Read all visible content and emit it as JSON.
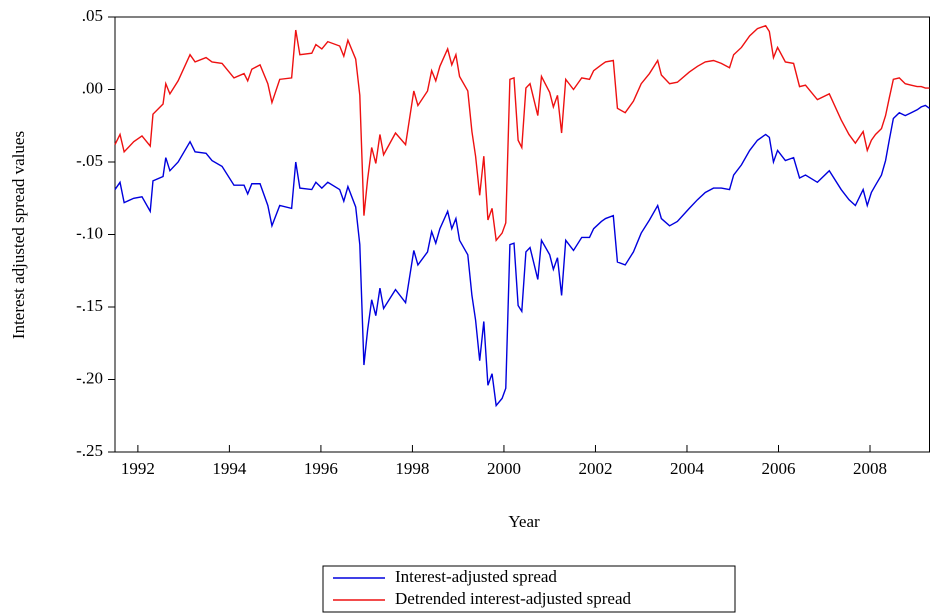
{
  "chart_data": {
    "type": "line",
    "x_label": "Year",
    "y_label": "Interest adjusted spread values",
    "x": [
      1991.5,
      1991.61,
      1991.7,
      1991.91,
      1992.09,
      1992.27,
      1992.33,
      1992.55,
      1992.61,
      1992.7,
      1992.88,
      1993.14,
      1993.25,
      1993.49,
      1993.62,
      1993.84,
      1994.1,
      1994.32,
      1994.4,
      1994.49,
      1994.67,
      1994.84,
      1994.93,
      1995.1,
      1995.36,
      1995.45,
      1995.54,
      1995.8,
      1995.89,
      1996.02,
      1996.15,
      1996.41,
      1996.5,
      1996.59,
      1996.76,
      1996.85,
      1996.94,
      1997.02,
      1997.11,
      1997.2,
      1997.29,
      1997.37,
      1997.63,
      1997.85,
      1998.03,
      1998.12,
      1998.33,
      1998.42,
      1998.51,
      1998.6,
      1998.77,
      1998.86,
      1998.95,
      1999.03,
      1999.21,
      1999.3,
      1999.38,
      1999.47,
      1999.56,
      1999.65,
      1999.74,
      1999.83,
      1999.96,
      2000.04,
      2000.13,
      2000.22,
      2000.31,
      2000.39,
      2000.48,
      2000.57,
      2000.74,
      2000.82,
      2001.0,
      2001.08,
      2001.17,
      2001.26,
      2001.35,
      2001.52,
      2001.7,
      2001.87,
      2001.96,
      2002.13,
      2002.22,
      2002.39,
      2002.48,
      2002.65,
      2002.83,
      2003.0,
      2003.18,
      2003.36,
      2003.44,
      2003.62,
      2003.79,
      2004.05,
      2004.23,
      2004.4,
      2004.58,
      2004.75,
      2004.93,
      2005.02,
      2005.19,
      2005.37,
      2005.54,
      2005.72,
      2005.8,
      2005.89,
      2005.98,
      2006.15,
      2006.33,
      2006.46,
      2006.59,
      2006.85,
      2007.11,
      2007.37,
      2007.54,
      2007.68,
      2007.85,
      2007.94,
      2008.03,
      2008.12,
      2008.25,
      2008.34,
      2008.42,
      2008.51,
      2008.64,
      2008.77,
      2008.9,
      2009.03,
      2009.12,
      2009.21,
      2009.3
    ],
    "series": [
      {
        "name": "Interest-adjusted spread",
        "color": "#0000dd",
        "values": [
          -0.069,
          -0.064,
          -0.078,
          -0.075,
          -0.074,
          -0.084,
          -0.063,
          -0.06,
          -0.047,
          -0.056,
          -0.05,
          -0.036,
          -0.043,
          -0.044,
          -0.049,
          -0.053,
          -0.066,
          -0.066,
          -0.072,
          -0.065,
          -0.065,
          -0.08,
          -0.094,
          -0.08,
          -0.082,
          -0.05,
          -0.068,
          -0.069,
          -0.064,
          -0.068,
          -0.064,
          -0.069,
          -0.077,
          -0.067,
          -0.081,
          -0.107,
          -0.19,
          -0.166,
          -0.145,
          -0.156,
          -0.137,
          -0.151,
          -0.138,
          -0.147,
          -0.111,
          -0.121,
          -0.112,
          -0.098,
          -0.106,
          -0.096,
          -0.084,
          -0.096,
          -0.089,
          -0.104,
          -0.114,
          -0.142,
          -0.159,
          -0.187,
          -0.16,
          -0.204,
          -0.196,
          -0.218,
          -0.213,
          -0.206,
          -0.107,
          -0.106,
          -0.149,
          -0.153,
          -0.112,
          -0.109,
          -0.131,
          -0.104,
          -0.114,
          -0.124,
          -0.116,
          -0.142,
          -0.104,
          -0.111,
          -0.102,
          -0.102,
          -0.096,
          -0.091,
          -0.089,
          -0.087,
          -0.119,
          -0.121,
          -0.112,
          -0.099,
          -0.09,
          -0.08,
          -0.089,
          -0.094,
          -0.091,
          -0.082,
          -0.076,
          -0.071,
          -0.068,
          -0.068,
          -0.069,
          -0.059,
          -0.052,
          -0.042,
          -0.035,
          -0.031,
          -0.033,
          -0.05,
          -0.042,
          -0.049,
          -0.047,
          -0.061,
          -0.059,
          -0.064,
          -0.056,
          -0.069,
          -0.076,
          -0.08,
          -0.069,
          -0.08,
          -0.071,
          -0.066,
          -0.059,
          -0.049,
          -0.035,
          -0.02,
          -0.016,
          -0.018,
          -0.016,
          -0.014,
          -0.012,
          -0.011,
          -0.013
        ]
      },
      {
        "name": "Detrended interest-adjusted spread",
        "color": "#ee1111",
        "values": [
          -0.038,
          -0.031,
          -0.043,
          -0.036,
          -0.032,
          -0.039,
          -0.017,
          -0.01,
          0.004,
          -0.003,
          0.006,
          0.024,
          0.019,
          0.022,
          0.019,
          0.018,
          0.008,
          0.011,
          0.006,
          0.014,
          0.017,
          0.004,
          -0.009,
          0.007,
          0.008,
          0.041,
          0.024,
          0.025,
          0.031,
          0.028,
          0.033,
          0.03,
          0.023,
          0.034,
          0.021,
          -0.004,
          -0.087,
          -0.062,
          -0.04,
          -0.051,
          -0.031,
          -0.045,
          -0.03,
          -0.038,
          -0.001,
          -0.011,
          -0.001,
          0.013,
          0.006,
          0.016,
          0.028,
          0.017,
          0.024,
          0.009,
          -0.001,
          -0.029,
          -0.046,
          -0.073,
          -0.046,
          -0.09,
          -0.082,
          -0.104,
          -0.099,
          -0.092,
          0.007,
          0.008,
          -0.035,
          -0.04,
          0.001,
          0.004,
          -0.018,
          0.009,
          -0.002,
          -0.012,
          -0.004,
          -0.03,
          0.007,
          0.0,
          0.008,
          0.007,
          0.013,
          0.017,
          0.019,
          0.02,
          -0.013,
          -0.016,
          -0.008,
          0.004,
          0.011,
          0.02,
          0.01,
          0.004,
          0.005,
          0.012,
          0.016,
          0.019,
          0.02,
          0.018,
          0.015,
          0.024,
          0.029,
          0.037,
          0.042,
          0.044,
          0.04,
          0.022,
          0.029,
          0.019,
          0.018,
          0.002,
          0.003,
          -0.007,
          -0.003,
          -0.021,
          -0.031,
          -0.037,
          -0.029,
          -0.042,
          -0.035,
          -0.031,
          -0.027,
          -0.018,
          -0.006,
          0.007,
          0.008,
          0.004,
          0.003,
          0.002,
          0.002,
          0.001,
          0.001
        ]
      }
    ],
    "xlim": [
      1991.5,
      2009.3
    ],
    "xticks": [
      1992,
      1994,
      1996,
      1998,
      2000,
      2002,
      2004,
      2006,
      2008
    ],
    "ylim": [
      -0.25,
      0.05
    ],
    "yticks": [
      {
        "value": 0.05,
        "label": ".05"
      },
      {
        "value": 0,
        "label": ".00"
      },
      {
        "value": -0.05,
        "label": "-.05"
      },
      {
        "value": -0.1,
        "label": "-.10"
      },
      {
        "value": -0.15,
        "label": "-.15"
      },
      {
        "value": -0.2,
        "label": "-.20"
      },
      {
        "value": -0.25,
        "label": "-.25"
      }
    ],
    "grid": false,
    "legend": "bottom"
  }
}
